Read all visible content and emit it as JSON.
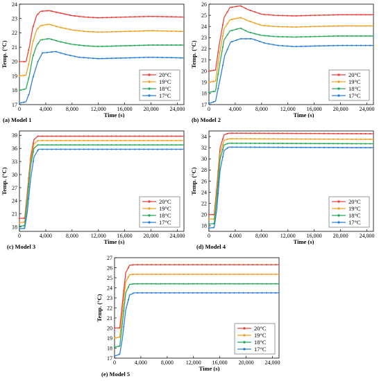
{
  "chart_data": [
    {
      "type": "line",
      "caption": "(a) Model 1",
      "xlabel": "Time (s)",
      "ylabel": "Temp. (°C)",
      "xlim": [
        0,
        25000
      ],
      "ylim": [
        17,
        24
      ],
      "xticks": [
        0,
        4000,
        8000,
        12000,
        16000,
        20000,
        24000
      ],
      "xtick_labels": [
        "0",
        "4,000",
        "8,000",
        "12,000",
        "16,000",
        "20,000",
        "24,000"
      ],
      "yticks": [
        17,
        18,
        19,
        20,
        21,
        22,
        23,
        24
      ],
      "ytick_labels": [
        "17",
        "18",
        "19",
        "20",
        "21",
        "22",
        "23",
        "24"
      ],
      "legend_position": "bottom-right",
      "series": [
        {
          "name": "20°C",
          "color": "#e8423a",
          "points": [
            [
              0,
              20
            ],
            [
              1000,
              20
            ],
            [
              1500,
              21
            ],
            [
              2000,
              22.3
            ],
            [
              2600,
              23.2
            ],
            [
              3200,
              23.5
            ],
            [
              4500,
              23.55
            ],
            [
              6000,
              23.4
            ],
            [
              8000,
              23.2
            ],
            [
              10000,
              23.1
            ],
            [
              12000,
              23.05
            ],
            [
              16000,
              23.1
            ],
            [
              20000,
              23.15
            ],
            [
              25000,
              23.1
            ]
          ]
        },
        {
          "name": "19°C",
          "color": "#f0a020",
          "points": [
            [
              0,
              19
            ],
            [
              1000,
              19.05
            ],
            [
              1500,
              20
            ],
            [
              2000,
              21.3
            ],
            [
              2600,
              22.2
            ],
            [
              3200,
              22.5
            ],
            [
              4500,
              22.6
            ],
            [
              6000,
              22.4
            ],
            [
              8000,
              22.2
            ],
            [
              10000,
              22.1
            ],
            [
              12000,
              22.05
            ],
            [
              16000,
              22.1
            ],
            [
              20000,
              22.15
            ],
            [
              25000,
              22.1
            ]
          ]
        },
        {
          "name": "18°C",
          "color": "#27a85a",
          "points": [
            [
              0,
              18
            ],
            [
              1000,
              18.1
            ],
            [
              1500,
              19
            ],
            [
              2000,
              20.3
            ],
            [
              2600,
              21.1
            ],
            [
              3200,
              21.5
            ],
            [
              4500,
              21.6
            ],
            [
              6000,
              21.4
            ],
            [
              8000,
              21.2
            ],
            [
              10000,
              21.1
            ],
            [
              12000,
              21.05
            ],
            [
              16000,
              21.1
            ],
            [
              20000,
              21.15
            ],
            [
              25000,
              21.15
            ]
          ]
        },
        {
          "name": "17°C",
          "color": "#2e7fd6",
          "points": [
            [
              0,
              17.1
            ],
            [
              1000,
              17.2
            ],
            [
              1500,
              17.8
            ],
            [
              2000,
              18.8
            ],
            [
              2800,
              20
            ],
            [
              3500,
              20.6
            ],
            [
              5500,
              20.7
            ],
            [
              7000,
              20.5
            ],
            [
              9000,
              20.3
            ],
            [
              12000,
              20.2
            ],
            [
              16000,
              20.25
            ],
            [
              20000,
              20.3
            ],
            [
              25000,
              20.25
            ]
          ]
        }
      ]
    },
    {
      "type": "line",
      "caption": "(b) Model 2",
      "xlabel": "Time (s)",
      "ylabel": "Temp. (°C)",
      "xlim": [
        0,
        25000
      ],
      "ylim": [
        17,
        26
      ],
      "xticks": [
        0,
        4000,
        8000,
        12000,
        16000,
        20000,
        24000
      ],
      "xtick_labels": [
        "0",
        "4,000",
        "8,000",
        "12,000",
        "16,000",
        "20,000",
        "24,000"
      ],
      "yticks": [
        17,
        18,
        19,
        20,
        21,
        22,
        23,
        24,
        25,
        26
      ],
      "ytick_labels": [
        "17",
        "18",
        "19",
        "20",
        "21",
        "22",
        "23",
        "24",
        "25",
        "26"
      ],
      "legend_position": "bottom-right",
      "series": [
        {
          "name": "20°C",
          "color": "#e8423a",
          "points": [
            [
              0,
              20
            ],
            [
              1000,
              20.1
            ],
            [
              1600,
              22.5
            ],
            [
              2300,
              24.8
            ],
            [
              3200,
              25.7
            ],
            [
              4800,
              25.85
            ],
            [
              6000,
              25.5
            ],
            [
              8000,
              25.1
            ],
            [
              10000,
              25
            ],
            [
              13000,
              24.95
            ],
            [
              16000,
              25
            ],
            [
              20000,
              25.05
            ],
            [
              25000,
              25.05
            ]
          ]
        },
        {
          "name": "19°C",
          "color": "#f0a020",
          "points": [
            [
              0,
              19
            ],
            [
              1000,
              19.1
            ],
            [
              1600,
              21.5
            ],
            [
              2300,
              23.8
            ],
            [
              3200,
              24.6
            ],
            [
              4800,
              24.8
            ],
            [
              6000,
              24.5
            ],
            [
              8000,
              24.1
            ],
            [
              10000,
              24
            ],
            [
              13000,
              23.95
            ],
            [
              16000,
              24
            ],
            [
              20000,
              24.05
            ],
            [
              25000,
              24.05
            ]
          ]
        },
        {
          "name": "18°C",
          "color": "#27a85a",
          "points": [
            [
              0,
              18.1
            ],
            [
              1000,
              18.2
            ],
            [
              1600,
              20.5
            ],
            [
              2300,
              22.8
            ],
            [
              3200,
              23.6
            ],
            [
              4800,
              23.85
            ],
            [
              6000,
              23.5
            ],
            [
              8000,
              23.2
            ],
            [
              10000,
              23.1
            ],
            [
              13000,
              23.05
            ],
            [
              16000,
              23.1
            ],
            [
              20000,
              23.15
            ],
            [
              25000,
              23.15
            ]
          ]
        },
        {
          "name": "17°C",
          "color": "#2e7fd6",
          "points": [
            [
              0,
              17.1
            ],
            [
              1000,
              17.3
            ],
            [
              1700,
              19.3
            ],
            [
              2400,
              21.4
            ],
            [
              3300,
              22.6
            ],
            [
              4800,
              22.9
            ],
            [
              6500,
              22.9
            ],
            [
              8500,
              22.5
            ],
            [
              10500,
              22.3
            ],
            [
              13000,
              22.2
            ],
            [
              16000,
              22.25
            ],
            [
              20000,
              22.3
            ],
            [
              25000,
              22.3
            ]
          ]
        }
      ]
    },
    {
      "type": "line",
      "caption": "(c) Model 3",
      "xlabel": "Time (s)",
      "ylabel": "Temp. (°C)",
      "xlim": [
        0,
        25000
      ],
      "ylim": [
        17,
        40
      ],
      "xticks": [
        0,
        4000,
        8000,
        12000,
        16000,
        20000,
        24000
      ],
      "xtick_labels": [
        "0",
        "4,000",
        "8,000",
        "12,000",
        "16,000",
        "20,000",
        "24,000"
      ],
      "yticks": [
        18,
        21,
        24,
        27,
        30,
        33,
        36,
        39
      ],
      "ytick_labels": [
        "18",
        "21",
        "24",
        "27",
        "30",
        "33",
        "36",
        "39"
      ],
      "legend_position": "bottom-right",
      "series": [
        {
          "name": "20°C",
          "color": "#e8423a",
          "points": [
            [
              0,
              20
            ],
            [
              800,
              20
            ],
            [
              1200,
              26
            ],
            [
              1700,
              34
            ],
            [
              2200,
              38
            ],
            [
              2800,
              38.8
            ],
            [
              25000,
              38.8
            ]
          ]
        },
        {
          "name": "19°C",
          "color": "#f0a020",
          "points": [
            [
              0,
              19
            ],
            [
              800,
              19.1
            ],
            [
              1200,
              25
            ],
            [
              1700,
              33
            ],
            [
              2200,
              37
            ],
            [
              2800,
              37.8
            ],
            [
              25000,
              37.8
            ]
          ]
        },
        {
          "name": "18°C",
          "color": "#27a85a",
          "points": [
            [
              0,
              18.2
            ],
            [
              800,
              18.3
            ],
            [
              1200,
              24
            ],
            [
              1700,
              32
            ],
            [
              2200,
              36
            ],
            [
              2800,
              36.8
            ],
            [
              25000,
              36.8
            ]
          ]
        },
        {
          "name": "17°C",
          "color": "#2e7fd6",
          "points": [
            [
              0,
              17.6
            ],
            [
              800,
              17.7
            ],
            [
              1200,
              21.5
            ],
            [
              1700,
              29
            ],
            [
              2200,
              34
            ],
            [
              2900,
              35.8
            ],
            [
              25000,
              35.8
            ]
          ]
        }
      ]
    },
    {
      "type": "line",
      "caption": "(d) Model 4",
      "xlabel": "Time (s)",
      "ylabel": "Temp. (°C)",
      "xlim": [
        0,
        25000
      ],
      "ylim": [
        17,
        35
      ],
      "xticks": [
        0,
        4000,
        8000,
        12000,
        16000,
        20000,
        24000
      ],
      "xtick_labels": [
        "0",
        "4,000",
        "8,000",
        "12,000",
        "16,000",
        "20,000",
        "24,000"
      ],
      "yticks": [
        18,
        20,
        22,
        24,
        26,
        28,
        30,
        32,
        34
      ],
      "ytick_labels": [
        "18",
        "20",
        "22",
        "24",
        "26",
        "28",
        "30",
        "32",
        "34"
      ],
      "legend_position": "bottom-right",
      "series": [
        {
          "name": "20°C",
          "color": "#e8423a",
          "points": [
            [
              0,
              20
            ],
            [
              800,
              20
            ],
            [
              1200,
              25
            ],
            [
              1700,
              32
            ],
            [
              2300,
              34.3
            ],
            [
              3000,
              34.6
            ],
            [
              25000,
              34.5
            ]
          ]
        },
        {
          "name": "19°C",
          "color": "#f0a020",
          "points": [
            [
              0,
              19.2
            ],
            [
              800,
              19.2
            ],
            [
              1200,
              24
            ],
            [
              1700,
              31
            ],
            [
              2300,
              33.3
            ],
            [
              3000,
              33.6
            ],
            [
              25000,
              33.5
            ]
          ]
        },
        {
          "name": "18°C",
          "color": "#27a85a",
          "points": [
            [
              0,
              18.3
            ],
            [
              800,
              18.4
            ],
            [
              1200,
              23
            ],
            [
              1700,
              30
            ],
            [
              2300,
              32.5
            ],
            [
              3000,
              32.8
            ],
            [
              25000,
              32.7
            ]
          ]
        },
        {
          "name": "17°C",
          "color": "#2e7fd6",
          "points": [
            [
              0,
              17.6
            ],
            [
              800,
              17.7
            ],
            [
              1200,
              21
            ],
            [
              1700,
              28
            ],
            [
              2300,
              31.5
            ],
            [
              3000,
              32.1
            ],
            [
              25000,
              32
            ]
          ]
        }
      ]
    },
    {
      "type": "line",
      "caption": "(e) Model 5",
      "xlabel": "Time (s)",
      "ylabel": "Temp. (°C)",
      "xlim": [
        0,
        25000
      ],
      "ylim": [
        17,
        27
      ],
      "xticks": [
        0,
        4000,
        8000,
        12000,
        16000,
        20000,
        24000
      ],
      "xtick_labels": [
        "0",
        "4,000",
        "8,000",
        "12,000",
        "16,000",
        "20,000",
        "24,000"
      ],
      "yticks": [
        17,
        18,
        19,
        20,
        21,
        22,
        23,
        24,
        25,
        26,
        27
      ],
      "ytick_labels": [
        "17",
        "18",
        "19",
        "20",
        "21",
        "22",
        "23",
        "24",
        "25",
        "26",
        "27"
      ],
      "legend_position": "bottom-right",
      "series": [
        {
          "name": "20°C",
          "color": "#e8423a",
          "points": [
            [
              0,
              20
            ],
            [
              800,
              20
            ],
            [
              1200,
              22.5
            ],
            [
              1700,
              25.5
            ],
            [
              2300,
              26.25
            ],
            [
              3000,
              26.3
            ],
            [
              25000,
              26.3
            ]
          ]
        },
        {
          "name": "19°C",
          "color": "#f0a020",
          "points": [
            [
              0,
              19
            ],
            [
              800,
              19.1
            ],
            [
              1200,
              21.6
            ],
            [
              1700,
              24.6
            ],
            [
              2300,
              25.3
            ],
            [
              3000,
              25.35
            ],
            [
              25000,
              25.35
            ]
          ]
        },
        {
          "name": "18°C",
          "color": "#27a85a",
          "points": [
            [
              0,
              18.1
            ],
            [
              800,
              18.2
            ],
            [
              1200,
              20.5
            ],
            [
              1700,
              23.5
            ],
            [
              2300,
              24.35
            ],
            [
              3000,
              24.4
            ],
            [
              25000,
              24.4
            ]
          ]
        },
        {
          "name": "17°C",
          "color": "#2e7fd6",
          "points": [
            [
              0,
              17.2
            ],
            [
              800,
              17.4
            ],
            [
              1200,
              19
            ],
            [
              1700,
              21.8
            ],
            [
              2300,
              23.3
            ],
            [
              3000,
              23.5
            ],
            [
              25000,
              23.5
            ]
          ]
        }
      ]
    }
  ]
}
